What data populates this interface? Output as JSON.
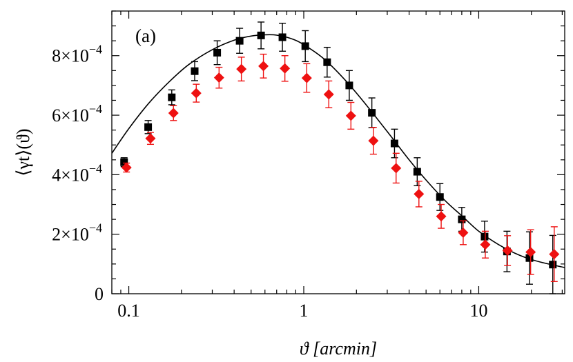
{
  "chart_data": {
    "type": "scatter",
    "panel_label": "(a)",
    "xlabel": "ϑ [arcmin]",
    "ylabel": "⟨γt⟩(ϑ)",
    "xscale": "log",
    "xlim": [
      0.08,
      31
    ],
    "ylim": [
      0,
      0.00095
    ],
    "x_ticks": [
      {
        "value": 0.1,
        "label": "0.1"
      },
      {
        "value": 1,
        "label": "1"
      },
      {
        "value": 10,
        "label": "10"
      }
    ],
    "y_ticks": [
      {
        "value": 0,
        "mantissa": "0",
        "exponent": ""
      },
      {
        "value": 0.0002,
        "mantissa": "2×10",
        "exponent": "−4"
      },
      {
        "value": 0.0004,
        "mantissa": "4×10",
        "exponent": "−4"
      },
      {
        "value": 0.0006,
        "mantissa": "6×10",
        "exponent": "−4"
      },
      {
        "value": 0.0008,
        "mantissa": "8×10",
        "exponent": "−4"
      }
    ],
    "series": [
      {
        "name": "black squares",
        "marker": "square",
        "color": "#000000",
        "points": [
          {
            "x": 0.094,
            "y": 0.000442,
            "err": 1.5e-05
          },
          {
            "x": 0.129,
            "y": 0.00056,
            "err": 2.2e-05
          },
          {
            "x": 0.176,
            "y": 0.00066,
            "err": 2.5e-05
          },
          {
            "x": 0.238,
            "y": 0.000748,
            "err": 3.2e-05
          },
          {
            "x": 0.32,
            "y": 0.00081,
            "err": 4e-05
          },
          {
            "x": 0.43,
            "y": 0.00085,
            "err": 4.2e-05
          },
          {
            "x": 0.57,
            "y": 0.000868,
            "err": 4.5e-05
          },
          {
            "x": 0.755,
            "y": 0.000862,
            "err": 4.7e-05
          },
          {
            "x": 1.02,
            "y": 0.000832,
            "err": 5.2e-05
          },
          {
            "x": 1.36,
            "y": 0.000778,
            "err": 5e-05
          },
          {
            "x": 1.82,
            "y": 0.0007,
            "err": 5e-05
          },
          {
            "x": 2.45,
            "y": 0.000608,
            "err": 5e-05
          },
          {
            "x": 3.3,
            "y": 0.000505,
            "err": 4.8e-05
          },
          {
            "x": 4.45,
            "y": 0.00041,
            "err": 4.7e-05
          },
          {
            "x": 6.0,
            "y": 0.000325,
            "err": 4.5e-05
          },
          {
            "x": 8.0,
            "y": 0.00025,
            "err": 4e-05
          },
          {
            "x": 10.8,
            "y": 0.000192,
            "err": 5.2e-05
          },
          {
            "x": 14.5,
            "y": 0.000142,
            "err": 6.8e-05
          },
          {
            "x": 19.5,
            "y": 0.00012,
            "err": 8.8e-05
          },
          {
            "x": 26.5,
            "y": 9.8e-05,
            "err": 9.8e-05
          }
        ]
      },
      {
        "name": "red diamonds",
        "marker": "diamond",
        "color": "#ee1111",
        "points": [
          {
            "x": 0.097,
            "y": 0.000424,
            "err": 1.5e-05
          },
          {
            "x": 0.133,
            "y": 0.000522,
            "err": 2e-05
          },
          {
            "x": 0.18,
            "y": 0.000607,
            "err": 2.5e-05
          },
          {
            "x": 0.243,
            "y": 0.000674,
            "err": 3e-05
          },
          {
            "x": 0.328,
            "y": 0.000726,
            "err": 3.5e-05
          },
          {
            "x": 0.44,
            "y": 0.000755,
            "err": 4e-05
          },
          {
            "x": 0.588,
            "y": 0.000765,
            "err": 4e-05
          },
          {
            "x": 0.78,
            "y": 0.000757,
            "err": 4.3e-05
          },
          {
            "x": 1.04,
            "y": 0.000725,
            "err": 4.8e-05
          },
          {
            "x": 1.39,
            "y": 0.00067,
            "err": 4.5e-05
          },
          {
            "x": 1.86,
            "y": 0.000598,
            "err": 4.5e-05
          },
          {
            "x": 2.5,
            "y": 0.000514,
            "err": 4.5e-05
          },
          {
            "x": 3.37,
            "y": 0.000422,
            "err": 5e-05
          },
          {
            "x": 4.55,
            "y": 0.000335,
            "err": 4.3e-05
          },
          {
            "x": 6.1,
            "y": 0.00026,
            "err": 4e-05
          },
          {
            "x": 8.15,
            "y": 0.000205,
            "err": 4e-05
          },
          {
            "x": 10.9,
            "y": 0.000165,
            "err": 4.5e-05
          },
          {
            "x": 14.6,
            "y": 0.000145,
            "err": 5e-05
          },
          {
            "x": 19.8,
            "y": 0.00014,
            "err": 7.5e-05
          },
          {
            "x": 27.0,
            "y": 0.000133,
            "err": 9.2e-05
          }
        ]
      },
      {
        "name": "model curve",
        "marker": "line",
        "color": "#000000",
        "points": [
          {
            "x": 0.08,
            "y": 0.000472
          },
          {
            "x": 0.1,
            "y": 0.000555
          },
          {
            "x": 0.13,
            "y": 0.00064
          },
          {
            "x": 0.17,
            "y": 0.000712
          },
          {
            "x": 0.22,
            "y": 0.00077
          },
          {
            "x": 0.3,
            "y": 0.00082
          },
          {
            "x": 0.4,
            "y": 0.000852
          },
          {
            "x": 0.5,
            "y": 0.000866
          },
          {
            "x": 0.6,
            "y": 0.00087
          },
          {
            "x": 0.7,
            "y": 0.000869
          },
          {
            "x": 0.85,
            "y": 0.000857
          },
          {
            "x": 1.0,
            "y": 0.000837
          },
          {
            "x": 1.3,
            "y": 0.00079
          },
          {
            "x": 1.7,
            "y": 0.000722
          },
          {
            "x": 2.2,
            "y": 0.000645
          },
          {
            "x": 3.0,
            "y": 0.000545
          },
          {
            "x": 4.0,
            "y": 0.00045
          },
          {
            "x": 5.0,
            "y": 0.000382
          },
          {
            "x": 6.5,
            "y": 0.00031
          },
          {
            "x": 8.0,
            "y": 0.000262
          },
          {
            "x": 10.0,
            "y": 0.00021
          },
          {
            "x": 13.0,
            "y": 0.000165
          },
          {
            "x": 17.0,
            "y": 0.00013
          },
          {
            "x": 22.0,
            "y": 0.000108
          },
          {
            "x": 31.0,
            "y": 8.8e-05
          }
        ]
      }
    ]
  }
}
